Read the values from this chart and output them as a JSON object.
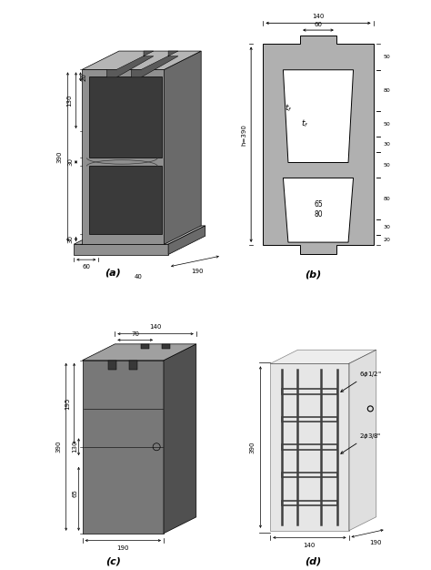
{
  "bg_color": "#ffffff",
  "gc": "#909090",
  "gf": "#b0b0b0",
  "gd": "#686868",
  "gs": "#787878",
  "label_a": "(a)",
  "label_b": "(b)",
  "label_c": "(c)",
  "label_d": "(d)"
}
